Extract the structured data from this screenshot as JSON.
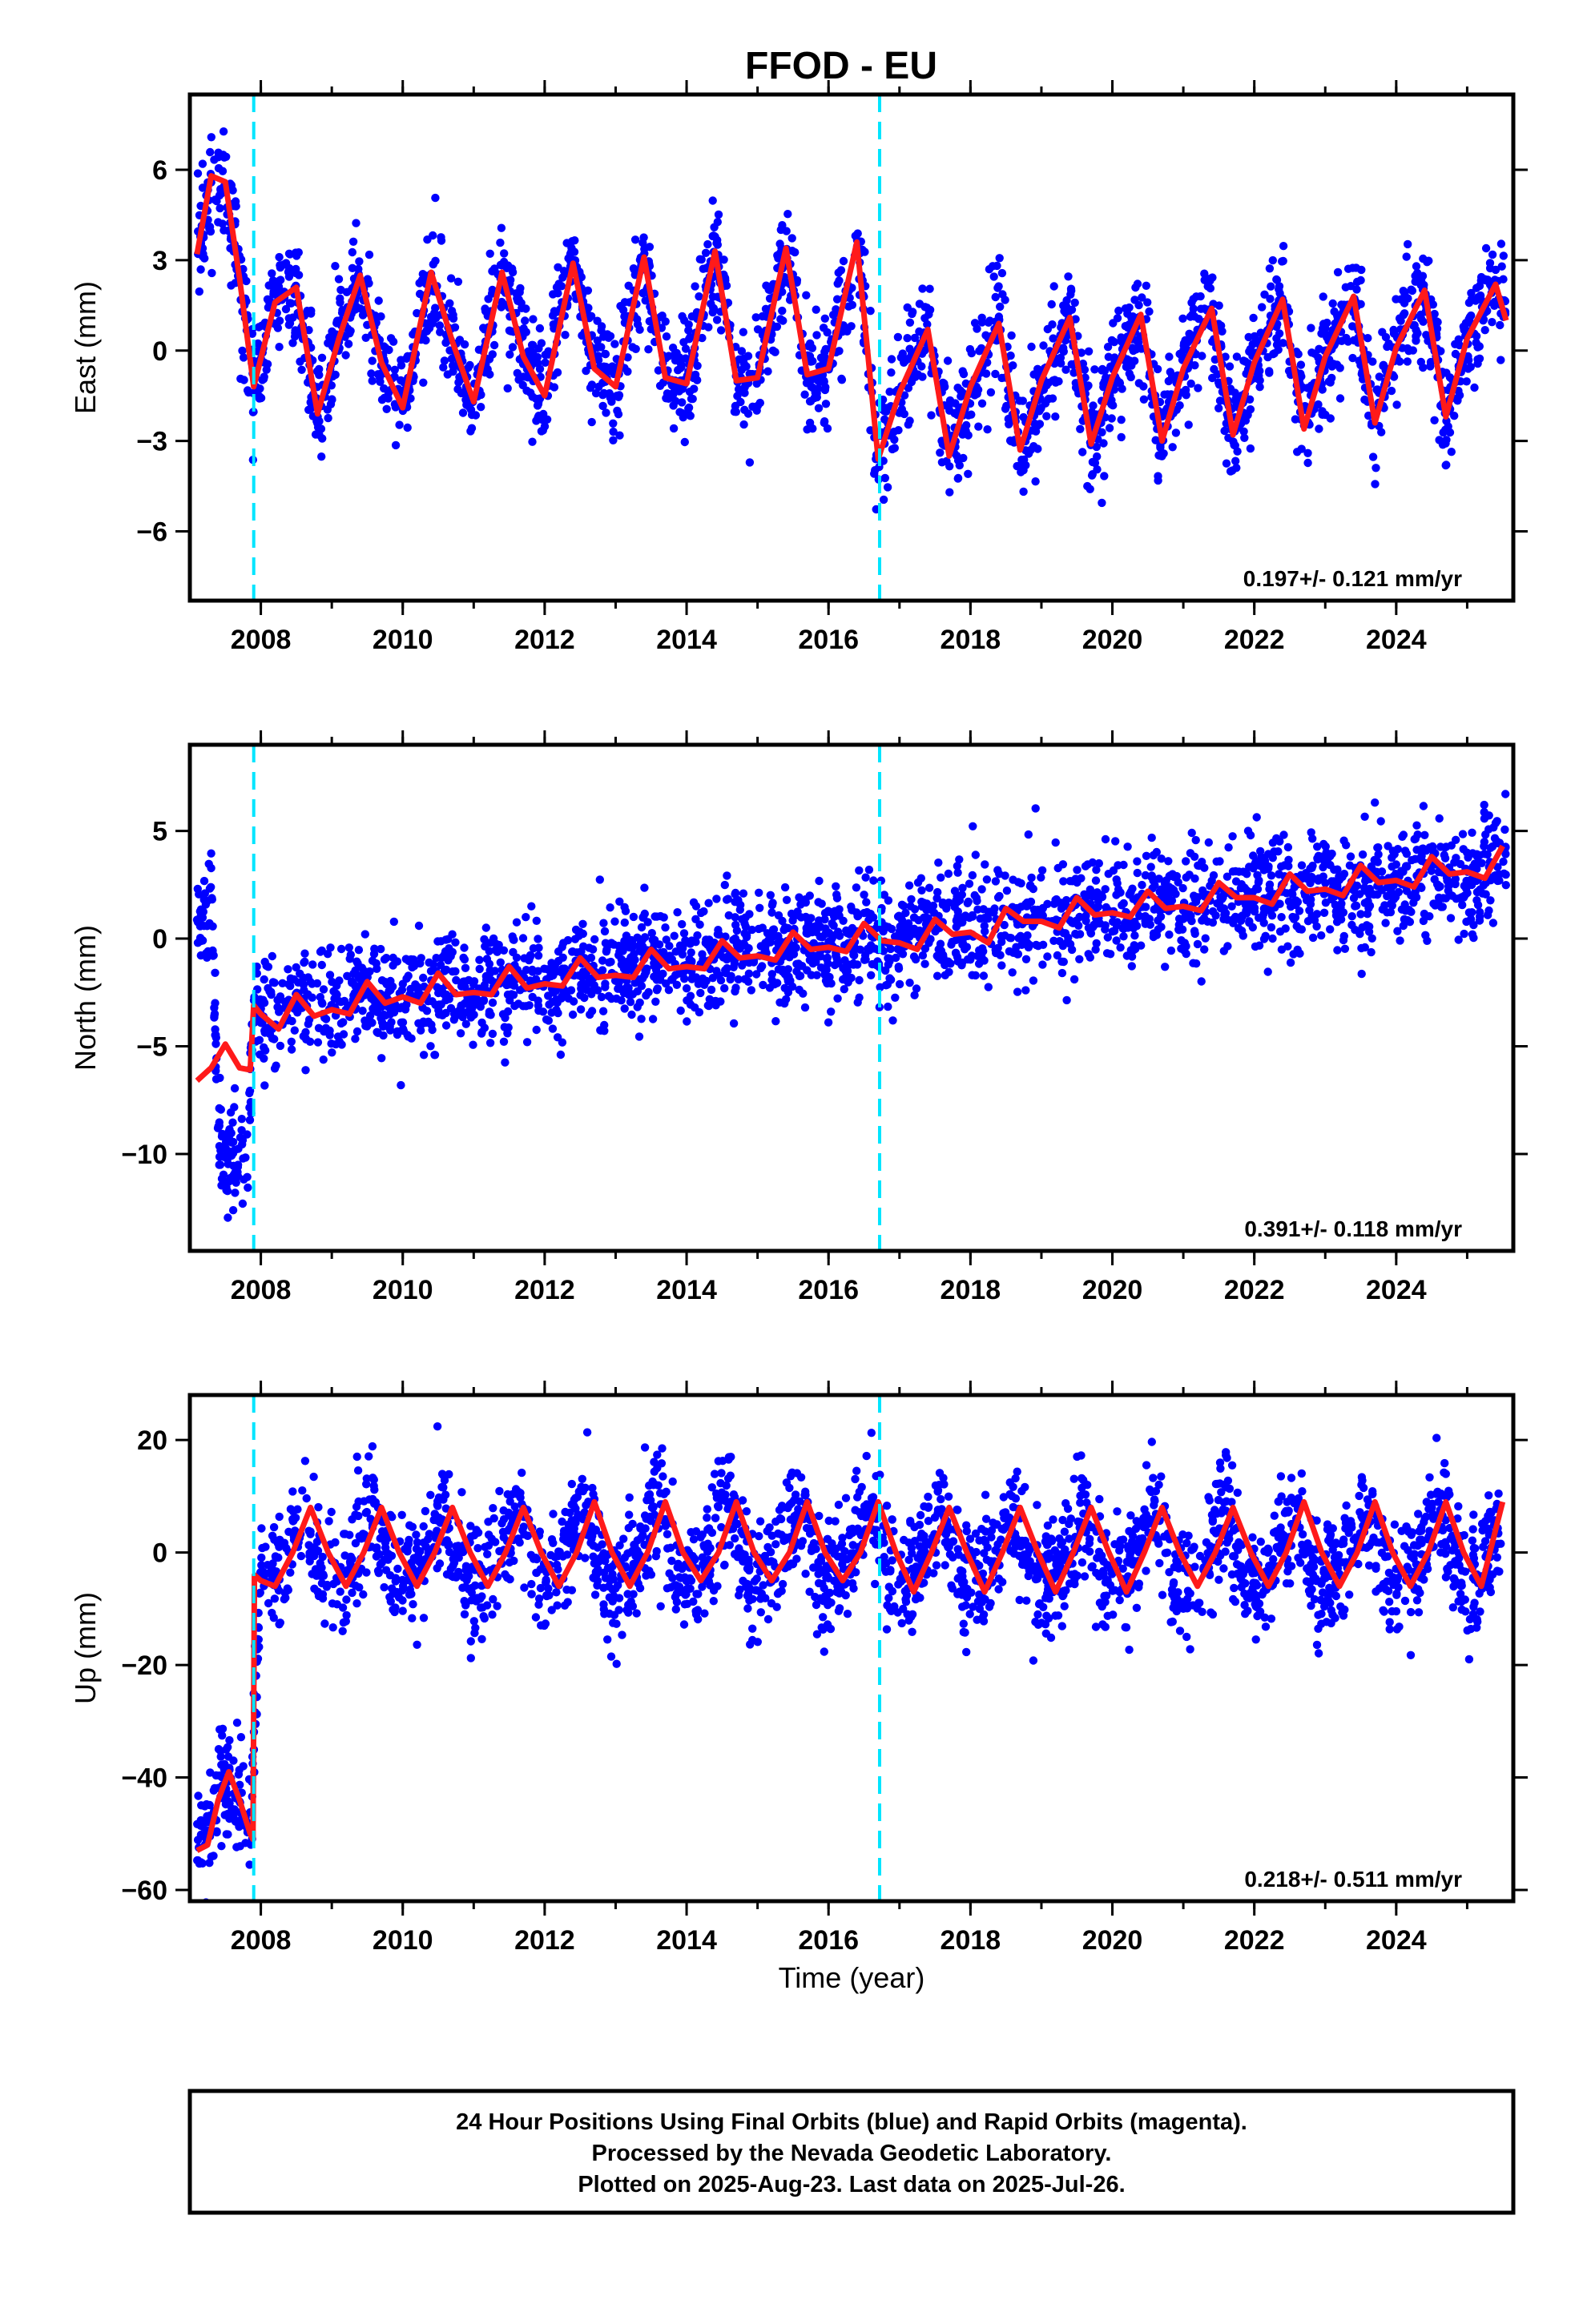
{
  "title": "FFOD - EU",
  "colors": {
    "final_orbits": "#0000ff",
    "model_fit": "#ff1a1a",
    "event_lines": "#00e5ff",
    "axis": "#000000"
  },
  "chart_data": [
    {
      "type": "scatter",
      "component": "east",
      "ylabel": "East (mm)",
      "xlabel": "",
      "xlim": [
        2007.0,
        2025.65
      ],
      "ylim": [
        -8.3,
        8.5
      ],
      "yticks": [
        -6,
        -3,
        0,
        3,
        6
      ],
      "ytick_labels": [
        "−6",
        "−3",
        "0",
        "3",
        "6"
      ],
      "xticks": [
        2008,
        2010,
        2012,
        2014,
        2016,
        2018,
        2020,
        2022,
        2024
      ],
      "event_lines": [
        2007.9,
        2016.72
      ],
      "rate": "0.197+/- 0.121 mm/yr",
      "series": [
        {
          "role": "observations",
          "x": [
            2007.1,
            2007.3,
            2007.5,
            2007.7,
            2007.9,
            2008.2,
            2008.5,
            2008.8,
            2009.1,
            2009.4,
            2009.7,
            2010.0,
            2010.4,
            2010.7,
            2011.0,
            2011.4,
            2011.7,
            2012.0,
            2012.4,
            2012.7,
            2013.0,
            2013.4,
            2013.7,
            2014.0,
            2014.4,
            2014.7,
            2015.0,
            2015.4,
            2015.7,
            2016.0,
            2016.4,
            2016.7,
            2017.0,
            2017.4,
            2017.7,
            2018.0,
            2018.4,
            2018.7,
            2019.0,
            2019.4,
            2019.7,
            2020.0,
            2020.4,
            2020.7,
            2021.0,
            2021.4,
            2021.7,
            2022.0,
            2022.4,
            2022.7,
            2023.0,
            2023.4,
            2023.7,
            2024.0,
            2024.4,
            2024.7,
            2025.0,
            2025.4,
            2025.55
          ],
          "y": [
            3.2,
            5.8,
            5.6,
            2.4,
            -1.2,
            1.6,
            2.1,
            -2.1,
            0.4,
            2.5,
            -0.4,
            -1.9,
            2.6,
            0.3,
            -1.7,
            2.6,
            -0.2,
            -1.5,
            2.9,
            -0.6,
            -1.2,
            3.1,
            -0.9,
            -1.1,
            3.3,
            -1.0,
            -0.9,
            3.4,
            -0.8,
            -0.6,
            3.6,
            -3.6,
            -1.4,
            0.7,
            -3.5,
            -1.2,
            0.9,
            -3.3,
            -1.0,
            1.1,
            -3.1,
            -0.9,
            1.2,
            -3.0,
            -0.6,
            1.4,
            -2.8,
            -0.4,
            1.7,
            -2.6,
            -0.2,
            1.8,
            -2.4,
            0.1,
            2.0,
            -2.2,
            0.4,
            2.2,
            1.0
          ]
        },
        {
          "role": "model",
          "x": [
            2007.1,
            2007.3,
            2007.5,
            2007.7,
            2007.9,
            2008.2,
            2008.5,
            2008.8,
            2009.1,
            2009.4,
            2009.7,
            2010.0,
            2010.4,
            2010.7,
            2011.0,
            2011.4,
            2011.7,
            2012.0,
            2012.4,
            2012.7,
            2013.0,
            2013.4,
            2013.7,
            2014.0,
            2014.4,
            2014.7,
            2015.0,
            2015.4,
            2015.7,
            2016.0,
            2016.4,
            2016.7,
            2017.0,
            2017.4,
            2017.7,
            2018.0,
            2018.4,
            2018.7,
            2019.0,
            2019.4,
            2019.7,
            2020.0,
            2020.4,
            2020.7,
            2021.0,
            2021.4,
            2021.7,
            2022.0,
            2022.4,
            2022.7,
            2023.0,
            2023.4,
            2023.7,
            2024.0,
            2024.4,
            2024.7,
            2025.0,
            2025.4,
            2025.55
          ],
          "y": [
            3.2,
            5.8,
            5.6,
            2.4,
            -1.2,
            1.6,
            2.1,
            -2.1,
            0.4,
            2.5,
            -0.4,
            -1.9,
            2.6,
            0.3,
            -1.7,
            2.6,
            -0.2,
            -1.5,
            2.9,
            -0.6,
            -1.2,
            3.1,
            -0.9,
            -1.1,
            3.3,
            -1.0,
            -0.9,
            3.4,
            -0.8,
            -0.6,
            3.6,
            -3.6,
            -1.4,
            0.7,
            -3.5,
            -1.2,
            0.9,
            -3.3,
            -1.0,
            1.1,
            -3.1,
            -0.9,
            1.2,
            -3.0,
            -0.6,
            1.4,
            -2.8,
            -0.4,
            1.7,
            -2.6,
            -0.2,
            1.8,
            -2.4,
            0.1,
            2.0,
            -2.2,
            0.4,
            2.2,
            1.0
          ]
        }
      ]
    },
    {
      "type": "scatter",
      "component": "north",
      "ylabel": "North (mm)",
      "xlabel": "",
      "xlim": [
        2007.0,
        2025.65
      ],
      "ylim": [
        -14.5,
        9.0
      ],
      "yticks": [
        -10,
        -5,
        0,
        5
      ],
      "ytick_labels": [
        "−10",
        "−5",
        "0",
        "5"
      ],
      "xticks": [
        2008,
        2010,
        2012,
        2014,
        2016,
        2018,
        2020,
        2022,
        2024
      ],
      "event_lines": [
        2007.9,
        2016.72
      ],
      "rate": "0.391+/- 0.118 mm/yr",
      "series": [
        {
          "role": "observations",
          "x": [
            2007.1,
            2007.2,
            2007.3,
            2007.4,
            2007.5,
            2007.6,
            2007.7,
            2007.8,
            2007.9,
            2008.2,
            2008.6,
            2009.0,
            2009.4,
            2009.8,
            2010.2,
            2010.6,
            2011.0,
            2011.4,
            2011.8,
            2012.2,
            2012.6,
            2013.0,
            2013.4,
            2013.8,
            2014.2,
            2014.6,
            2015.0,
            2015.4,
            2015.8,
            2016.2,
            2016.6,
            2017.0,
            2017.4,
            2017.8,
            2018.2,
            2018.6,
            2019.0,
            2019.4,
            2019.8,
            2020.2,
            2020.6,
            2021.0,
            2021.4,
            2021.8,
            2022.2,
            2022.6,
            2023.0,
            2023.4,
            2023.8,
            2024.2,
            2024.6,
            2025.0,
            2025.4,
            2025.55
          ],
          "y": [
            1.5,
            0.5,
            2.0,
            -9.0,
            -10.5,
            -9.5,
            -11.0,
            -10.0,
            -3.2,
            -3.8,
            -2.9,
            -3.3,
            -2.2,
            -2.9,
            -2.6,
            -1.9,
            -2.6,
            -2.2,
            -1.6,
            -2.0,
            -1.4,
            -1.7,
            -0.9,
            -1.6,
            -1.1,
            -0.4,
            -1.1,
            -0.6,
            0.1,
            -0.7,
            0.3,
            -0.4,
            0.6,
            0.2,
            0.9,
            0.6,
            1.3,
            1.0,
            1.6,
            0.9,
            1.9,
            1.3,
            2.1,
            1.6,
            2.4,
            1.8,
            2.6,
            2.1,
            3.0,
            2.3,
            3.3,
            2.5,
            3.8,
            4.0
          ]
        },
        {
          "role": "model",
          "x": [
            2007.1,
            2007.3,
            2007.5,
            2007.7,
            2007.85,
            2007.9,
            2008.0,
            2008.25,
            2008.5,
            2008.75,
            2009.0,
            2009.25,
            2009.5,
            2009.75,
            2010.0,
            2010.25,
            2010.5,
            2010.75,
            2011.0,
            2011.25,
            2011.5,
            2011.75,
            2012.0,
            2012.25,
            2012.5,
            2012.75,
            2013.0,
            2013.25,
            2013.5,
            2013.75,
            2014.0,
            2014.25,
            2014.5,
            2014.75,
            2015.0,
            2015.25,
            2015.5,
            2015.75,
            2016.0,
            2016.25,
            2016.5,
            2016.75,
            2017.0,
            2017.25,
            2017.5,
            2017.75,
            2018.0,
            2018.25,
            2018.5,
            2018.75,
            2019.0,
            2019.25,
            2019.5,
            2019.75,
            2020.0,
            2020.25,
            2020.5,
            2020.75,
            2021.0,
            2021.25,
            2021.5,
            2021.75,
            2022.0,
            2022.25,
            2022.5,
            2022.75,
            2023.0,
            2023.25,
            2023.5,
            2023.75,
            2024.0,
            2024.25,
            2024.5,
            2024.75,
            2025.0,
            2025.25,
            2025.5
          ],
          "y": [
            -6.6,
            -6.0,
            -4.9,
            -6.0,
            -6.1,
            -3.1,
            -3.5,
            -4.2,
            -2.6,
            -3.6,
            -3.3,
            -3.5,
            -2.0,
            -3.0,
            -2.7,
            -3.0,
            -1.6,
            -2.6,
            -2.5,
            -2.6,
            -1.3,
            -2.3,
            -2.1,
            -2.2,
            -0.9,
            -1.8,
            -1.7,
            -1.8,
            -0.5,
            -1.4,
            -1.3,
            -1.4,
            -0.1,
            -0.9,
            -0.8,
            -1.0,
            0.3,
            -0.5,
            -0.4,
            -0.6,
            0.7,
            -0.1,
            -0.2,
            -0.5,
            0.9,
            0.2,
            0.3,
            -0.2,
            1.4,
            0.8,
            0.8,
            0.5,
            1.9,
            1.1,
            1.2,
            1.0,
            2.2,
            1.4,
            1.5,
            1.3,
            2.6,
            1.9,
            1.9,
            1.6,
            3.0,
            2.2,
            2.3,
            2.0,
            3.4,
            2.6,
            2.7,
            2.4,
            3.8,
            3.0,
            3.1,
            2.8,
            4.3
          ]
        }
      ]
    },
    {
      "type": "scatter",
      "component": "up",
      "ylabel": "Up (mm)",
      "xlabel": "Time (year)",
      "xlim": [
        2007.0,
        2025.65
      ],
      "ylim": [
        -62,
        28
      ],
      "yticks": [
        -60,
        -40,
        -20,
        0,
        20
      ],
      "ytick_labels": [
        "−60",
        "−40",
        "−20",
        "0",
        "20"
      ],
      "xticks": [
        2008,
        2010,
        2012,
        2014,
        2016,
        2018,
        2020,
        2022,
        2024
      ],
      "event_lines": [
        2007.9,
        2016.72
      ],
      "rate": "0.218+/- 0.511 mm/yr",
      "series": [
        {
          "role": "observations",
          "x": [
            2007.1,
            2007.3,
            2007.5,
            2007.7,
            2007.85,
            2008.0,
            2008.3,
            2008.6,
            2008.9,
            2009.2,
            2009.6,
            2009.9,
            2010.2,
            2010.6,
            2010.9,
            2011.2,
            2011.6,
            2011.9,
            2012.2,
            2012.6,
            2012.9,
            2013.2,
            2013.6,
            2013.9,
            2014.2,
            2014.6,
            2014.9,
            2015.2,
            2015.6,
            2015.9,
            2016.2,
            2016.6,
            2016.9,
            2017.2,
            2017.6,
            2017.9,
            2018.2,
            2018.6,
            2018.9,
            2019.2,
            2019.6,
            2019.9,
            2020.2,
            2020.6,
            2020.9,
            2021.2,
            2021.6,
            2021.9,
            2022.2,
            2022.6,
            2022.9,
            2023.2,
            2023.6,
            2023.9,
            2024.2,
            2024.6,
            2024.9,
            2025.2,
            2025.5
          ],
          "y": [
            -52,
            -48,
            -40,
            -46,
            -50,
            -5,
            -3,
            7,
            -5,
            -4,
            8,
            -5,
            -4,
            8,
            -5,
            -4,
            8,
            -5,
            -4,
            9,
            -6,
            -4,
            9,
            -6,
            -4,
            9,
            -6,
            -4,
            9,
            -6,
            -4,
            9,
            -6,
            -4,
            8,
            -6,
            -4,
            8,
            -6,
            -4,
            8,
            -6,
            -4,
            8,
            -6,
            -4,
            8,
            -6,
            -4,
            9,
            -6,
            -4,
            9,
            -6,
            -4,
            9,
            -6,
            -4,
            9
          ]
        },
        {
          "role": "model",
          "x": [
            2007.1,
            2007.25,
            2007.4,
            2007.55,
            2007.7,
            2007.85,
            2007.89,
            2007.91,
            2008.0,
            2008.2,
            2008.45,
            2008.7,
            2008.95,
            2009.2,
            2009.45,
            2009.7,
            2009.95,
            2010.2,
            2010.45,
            2010.7,
            2010.95,
            2011.2,
            2011.45,
            2011.7,
            2011.95,
            2012.2,
            2012.45,
            2012.7,
            2012.95,
            2013.2,
            2013.45,
            2013.7,
            2013.95,
            2014.2,
            2014.45,
            2014.7,
            2014.95,
            2015.2,
            2015.45,
            2015.7,
            2015.95,
            2016.2,
            2016.45,
            2016.7,
            2016.95,
            2017.2,
            2017.45,
            2017.7,
            2017.95,
            2018.2,
            2018.45,
            2018.7,
            2018.95,
            2019.2,
            2019.45,
            2019.7,
            2019.95,
            2020.2,
            2020.45,
            2020.7,
            2020.95,
            2021.2,
            2021.45,
            2021.7,
            2021.95,
            2022.2,
            2022.45,
            2022.7,
            2022.95,
            2023.2,
            2023.45,
            2023.7,
            2023.95,
            2024.2,
            2024.45,
            2024.7,
            2024.95,
            2025.2,
            2025.5
          ],
          "y": [
            -53,
            -52,
            -44,
            -39,
            -44,
            -50,
            -51,
            -4,
            -5,
            -6,
            0,
            8,
            0,
            -6,
            0,
            8,
            0,
            -6,
            0,
            8,
            0,
            -6,
            0,
            8,
            0,
            -6,
            0,
            9,
            0,
            -6,
            0,
            9,
            0,
            -5,
            0,
            9,
            0,
            -5,
            0,
            9,
            0,
            -5,
            0,
            9,
            0,
            -7,
            0,
            8,
            0,
            -7,
            0,
            8,
            0,
            -7,
            0,
            8,
            0,
            -7,
            0,
            8,
            0,
            -6,
            0,
            8,
            0,
            -6,
            0,
            9,
            0,
            -6,
            0,
            9,
            0,
            -6,
            0,
            9,
            0,
            -6,
            9
          ]
        }
      ]
    }
  ],
  "footer": {
    "line1": "24 Hour Positions Using Final Orbits (blue) and Rapid Orbits (magenta).",
    "line2": "Processed by the Nevada Geodetic Laboratory.",
    "line3": "Plotted on 2025-Aug-23. Last data on 2025-Jul-26."
  }
}
